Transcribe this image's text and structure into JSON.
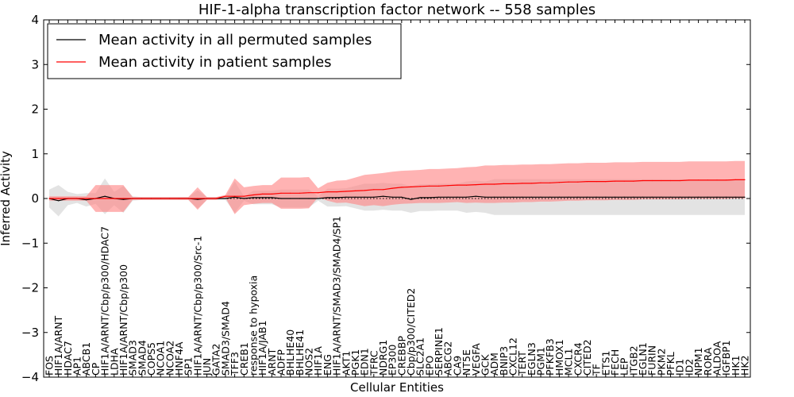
{
  "chart_data": {
    "type": "line",
    "title": "HIF-1-alpha transcription factor network -- 558 samples",
    "xlabel": "Cellular Entities",
    "ylabel": "Inferred Activity",
    "ylim": [
      -4,
      4
    ],
    "yticks": [
      -4,
      -3,
      -2,
      -1,
      0,
      1,
      2,
      3,
      4
    ],
    "grid": false,
    "legend_position": "top-left",
    "categories": [
      "FOS",
      "HIF1A/ARNT",
      "HDAC7",
      "AP1",
      "ABCB1",
      "CP",
      "HIF1A/ARNT/Cbp/p300/HDAC7",
      "LDHA",
      "HIF1A/ARNT/Cbp/p300",
      "SMAD3",
      "SMAD4",
      "COPS5",
      "NCOA1",
      "NCOA2",
      "HNF4A",
      "SP1",
      "HIF1A/ARNT/Cbp/p300/Src-1",
      "JUN",
      "GATA2",
      "SMAD3/SMAD4",
      "TFF3",
      "CREB1",
      "response to hypoxia",
      "HIF1A/JAB1",
      "ARNT",
      "ADFP",
      "BHLHE40",
      "BHLHE41",
      "NOS2",
      "HIF1A",
      "ENG",
      "HIF1A/ARNT/SMAD3/SMAD4/SP1",
      "AKT1",
      "PGK1",
      "EDN1",
      "TFRC",
      "NDRG1",
      "EP300",
      "CREBBP",
      "Cbp/p300/CITED2",
      "SLC2A1",
      "EPO",
      "SERPINE1",
      "ABCG2",
      "CA9",
      "NT5E",
      "VEGFA",
      "GCK",
      "ADM",
      "BNIP3",
      "CXCL12",
      "TERT",
      "EGLN3",
      "PGM1",
      "PFKFB3",
      "HMOX1",
      "MCL1",
      "CXCR4",
      "CITED2",
      "TF",
      "ETS1",
      "FECH",
      "LEP",
      "ITGB2",
      "EGLN1",
      "FURIN",
      "PKM2",
      "PFKL",
      "ID1",
      "ID2",
      "NPM1",
      "RORA",
      "ALDOA",
      "IGFBP1",
      "HK1",
      "HK2"
    ],
    "series": [
      {
        "name": "Mean activity in all permuted samples",
        "color": "#000000",
        "band_color": "#cccccc",
        "mean": [
          0.0,
          -0.05,
          0.0,
          0.0,
          -0.03,
          0.0,
          0.05,
          0.0,
          -0.02,
          0.0,
          0.0,
          0.0,
          0.0,
          0.0,
          0.0,
          0.0,
          -0.02,
          0.0,
          0.0,
          0.0,
          0.03,
          0.0,
          0.02,
          0.02,
          0.02,
          0.0,
          0.0,
          0.0,
          0.0,
          0.0,
          0.02,
          0.02,
          0.03,
          0.03,
          0.03,
          0.03,
          0.05,
          0.03,
          0.03,
          -0.02,
          0.02,
          0.02,
          0.03,
          0.03,
          0.03,
          0.03,
          0.05,
          0.03,
          0.03,
          0.03,
          0.03,
          0.03,
          0.03,
          0.03,
          0.03,
          0.03,
          0.03,
          0.03,
          0.03,
          0.03,
          0.03,
          0.03,
          0.03,
          0.03,
          0.03,
          0.03,
          0.03,
          0.03,
          0.03,
          0.03,
          0.03,
          0.03,
          0.03,
          0.03,
          0.03,
          0.03
        ],
        "std": [
          0.2,
          0.35,
          0.15,
          0.1,
          0.15,
          0.12,
          0.4,
          0.15,
          0.3,
          0.05,
          0.03,
          0.03,
          0.03,
          0.03,
          0.03,
          0.03,
          0.2,
          0.03,
          0.03,
          0.03,
          0.35,
          0.05,
          0.15,
          0.15,
          0.15,
          0.2,
          0.2,
          0.2,
          0.2,
          0.05,
          0.2,
          0.2,
          0.2,
          0.25,
          0.3,
          0.3,
          0.3,
          0.3,
          0.3,
          0.3,
          0.3,
          0.3,
          0.3,
          0.3,
          0.3,
          0.35,
          0.35,
          0.35,
          0.4,
          0.4,
          0.4,
          0.4,
          0.4,
          0.4,
          0.4,
          0.4,
          0.4,
          0.4,
          0.4,
          0.4,
          0.4,
          0.4,
          0.4,
          0.4,
          0.4,
          0.4,
          0.4,
          0.4,
          0.4,
          0.4,
          0.4,
          0.4,
          0.4,
          0.4,
          0.4,
          0.4
        ]
      },
      {
        "name": "Mean activity in patient samples",
        "color": "#ff0000",
        "band_color": "#ff8080",
        "mean": [
          0.0,
          0.0,
          0.0,
          0.0,
          0.0,
          0.0,
          0.0,
          0.0,
          0.0,
          0.0,
          0.0,
          0.0,
          0.0,
          0.0,
          0.0,
          0.0,
          0.0,
          0.0,
          0.0,
          0.05,
          0.05,
          0.05,
          0.08,
          0.1,
          0.1,
          0.12,
          0.12,
          0.12,
          0.13,
          0.13,
          0.15,
          0.15,
          0.16,
          0.17,
          0.18,
          0.2,
          0.2,
          0.23,
          0.25,
          0.26,
          0.27,
          0.28,
          0.28,
          0.29,
          0.3,
          0.3,
          0.31,
          0.32,
          0.32,
          0.33,
          0.33,
          0.34,
          0.34,
          0.35,
          0.35,
          0.36,
          0.37,
          0.37,
          0.38,
          0.38,
          0.38,
          0.39,
          0.39,
          0.39,
          0.4,
          0.4,
          0.4,
          0.4,
          0.4,
          0.41,
          0.41,
          0.41,
          0.41,
          0.41,
          0.42,
          0.42
        ],
        "std": [
          0.05,
          0.05,
          0.05,
          0.05,
          0.05,
          0.3,
          0.3,
          0.3,
          0.3,
          0.03,
          0.03,
          0.03,
          0.03,
          0.03,
          0.03,
          0.03,
          0.25,
          0.03,
          0.03,
          0.03,
          0.4,
          0.2,
          0.2,
          0.2,
          0.2,
          0.35,
          0.35,
          0.35,
          0.35,
          0.1,
          0.2,
          0.25,
          0.25,
          0.3,
          0.35,
          0.35,
          0.37,
          0.37,
          0.37,
          0.37,
          0.37,
          0.38,
          0.38,
          0.38,
          0.38,
          0.4,
          0.4,
          0.42,
          0.42,
          0.42,
          0.42,
          0.42,
          0.42,
          0.42,
          0.42,
          0.42,
          0.42,
          0.42,
          0.42,
          0.42,
          0.42,
          0.42,
          0.42,
          0.42,
          0.42,
          0.42,
          0.42,
          0.42,
          0.42,
          0.42,
          0.42,
          0.42,
          0.42,
          0.42,
          0.42,
          0.42
        ]
      }
    ],
    "baseline": {
      "value": 0,
      "style": "dotted"
    }
  }
}
